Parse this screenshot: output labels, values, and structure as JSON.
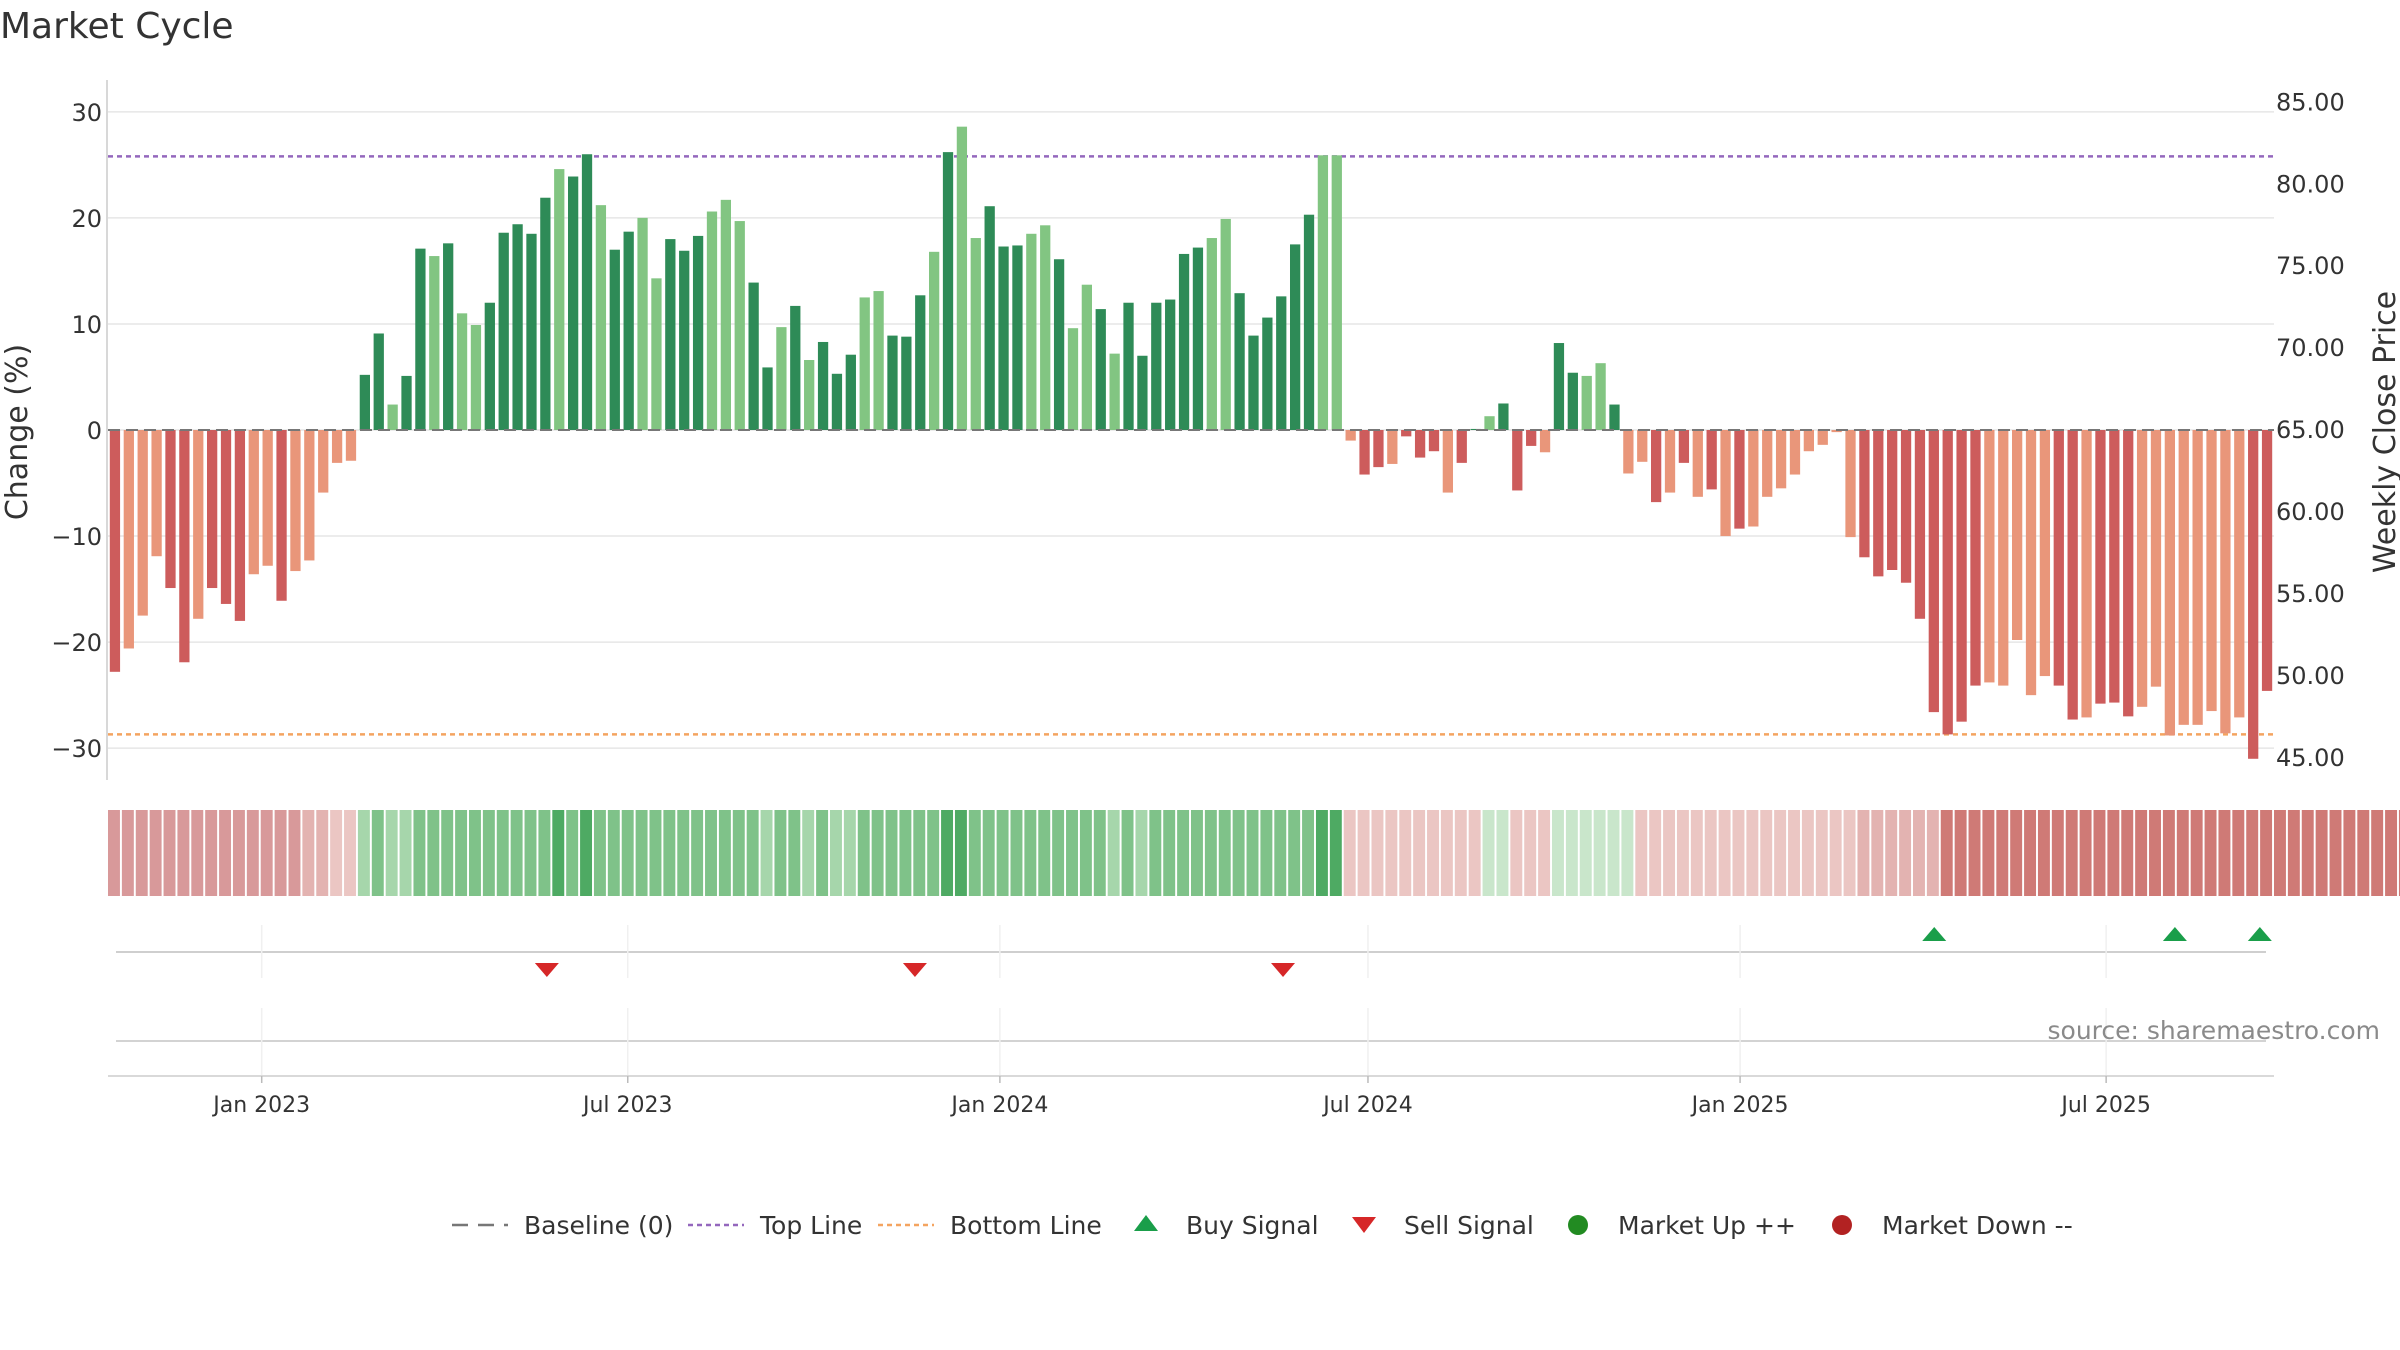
{
  "title": "Market Cycle",
  "source": "source: sharemaestro.com",
  "colors": {
    "up_dark": "#2e8b57",
    "up_light": "#82c582",
    "down_dark": "#cd5c5c",
    "down_light": "#e9967a",
    "top_line": "#9467bd",
    "bottom_line": "#f4a460",
    "baseline": "#777777",
    "buy": "#1a9e4a",
    "sell": "#d62728",
    "market_up": "#228b22",
    "market_down": "#b22222"
  },
  "chart_data": {
    "type": "bar",
    "title": "Market Cycle",
    "ylabel_left": "Change (%)",
    "ylabel_right": "Weekly Close Price",
    "ylim_left": [
      -33,
      33
    ],
    "ylim_right": [
      43.6,
      86.3
    ],
    "left_ticks": [
      "30",
      "20",
      "10",
      "0",
      "−10",
      "−20",
      "−30"
    ],
    "left_tick_values": [
      30,
      20,
      10,
      0,
      -10,
      -20,
      -30
    ],
    "right_ticks": [
      "85.00",
      "80.00",
      "75.00",
      "70.00",
      "65.00",
      "60.00",
      "55.00",
      "50.00",
      "45.00"
    ],
    "right_tick_values": [
      85,
      80,
      75,
      70,
      65,
      60,
      55,
      50,
      45
    ],
    "top_line": 25.8,
    "bottom_line": -28.7,
    "x_start": "2022-10-17",
    "x_end": "2025-09-22",
    "week_start": "2022-10-17",
    "x_ticks": [
      {
        "label": "Jan 2023",
        "date": "2023-01-01"
      },
      {
        "label": "Jul 2023",
        "date": "2023-07-01"
      },
      {
        "label": "Jan 2024",
        "date": "2024-01-01"
      },
      {
        "label": "Jul 2024",
        "date": "2024-07-01"
      },
      {
        "label": "Jan 2025",
        "date": "2025-01-01"
      },
      {
        "label": "Jul 2025",
        "date": "2025-07-01"
      }
    ],
    "values": [
      -22.8,
      -20.6,
      -17.5,
      -11.9,
      -14.9,
      -21.9,
      -17.8,
      -14.9,
      -16.4,
      -18.0,
      -13.6,
      -12.8,
      -16.1,
      -13.3,
      -12.3,
      -5.9,
      -3.1,
      -2.9,
      5.2,
      9.1,
      2.4,
      5.1,
      17.1,
      16.4,
      17.6,
      11.0,
      9.9,
      12.0,
      18.6,
      19.4,
      18.5,
      21.9,
      24.6,
      23.9,
      26.0,
      21.2,
      17.0,
      18.7,
      20.0,
      14.3,
      18.0,
      16.9,
      18.3,
      20.6,
      21.7,
      19.7,
      13.9,
      5.9,
      9.7,
      11.7,
      6.6,
      8.3,
      5.3,
      7.1,
      12.5,
      13.1,
      8.9,
      8.8,
      12.7,
      16.8,
      26.2,
      28.6,
      18.1,
      21.1,
      17.3,
      17.4,
      18.5,
      19.3,
      16.1,
      9.6,
      13.7,
      11.4,
      7.2,
      12.0,
      7.0,
      12.0,
      12.3,
      16.6,
      17.2,
      18.1,
      19.9,
      12.9,
      8.9,
      10.6,
      12.6,
      17.5,
      20.3,
      25.9,
      25.9,
      -1.0,
      -4.2,
      -3.5,
      -3.2,
      -0.6,
      -2.6,
      -2.0,
      -5.9,
      -3.1,
      0.1,
      1.3,
      2.5,
      -5.7,
      -1.5,
      -2.1,
      8.2,
      5.4,
      5.1,
      6.3,
      2.4,
      -4.1,
      -3.0,
      -6.8,
      -5.9,
      -3.1,
      -6.3,
      -5.6,
      -10.0,
      -9.3,
      -9.1,
      -6.3,
      -5.5,
      -4.2,
      -2.0,
      -1.4,
      -0.2,
      -10.1,
      -12.0,
      -13.8,
      -13.2,
      -14.4,
      -17.8,
      -26.6,
      -28.7,
      -27.5,
      -24.1,
      -23.8,
      -24.1,
      -19.8,
      -25.0,
      -23.2,
      -24.1,
      -27.3,
      -27.1,
      -25.8,
      -25.7,
      -27.0,
      -26.1,
      -24.2,
      -28.8,
      -27.8,
      -27.8,
      -26.5,
      -28.6,
      -27.1,
      -31.0,
      -24.6
    ],
    "color_codes": "DLLLDDLDDDLLDLLLLLDDLDDLDLLDDDDDLDDLDDLLDDDLLLDDLDLDDDLLDDDLDLLDDDLLDLLDLDDDDDDLLDDDDDDLLLDDLDDDLDDLDDDLDDLLDLLDLDLDLDLLLLLLLLDDDDDDDDDLLLLLDDLDDDLLLLLLLLDDLDDLDLDDL",
    "heat_codes": "RRRRRRRRRRRRRRRRrrGGGGGGGGGGGGGGGGGGGGGGGGGGGGGGGGGGGGGGGGGGGGGGGGGGGGGGGGGGGGGGGGGGGGGGGrrrrrrrrrrggrrrggggggrrrrrrrrrrrrrrrrRRRRRRSSSSSSSSSSSSSSSSSSSSSSSSSSSSSSSSSSSS",
    "buy_signals": [
      "2025-04-07",
      "2025-08-04",
      "2025-09-15"
    ],
    "sell_signals": [
      "2023-05-22",
      "2023-11-20",
      "2024-05-20"
    ]
  },
  "legend": [
    {
      "label": "Baseline (0)",
      "marker": "dash"
    },
    {
      "label": "Top Line",
      "marker": "dot-purple"
    },
    {
      "label": "Bottom Line",
      "marker": "dot-orange"
    },
    {
      "label": "Buy Signal",
      "marker": "triangle-up"
    },
    {
      "label": "Sell Signal",
      "marker": "triangle-down"
    },
    {
      "label": "Market Up ++",
      "marker": "circle-green"
    },
    {
      "label": "Market Down --",
      "marker": "circle-red"
    }
  ]
}
